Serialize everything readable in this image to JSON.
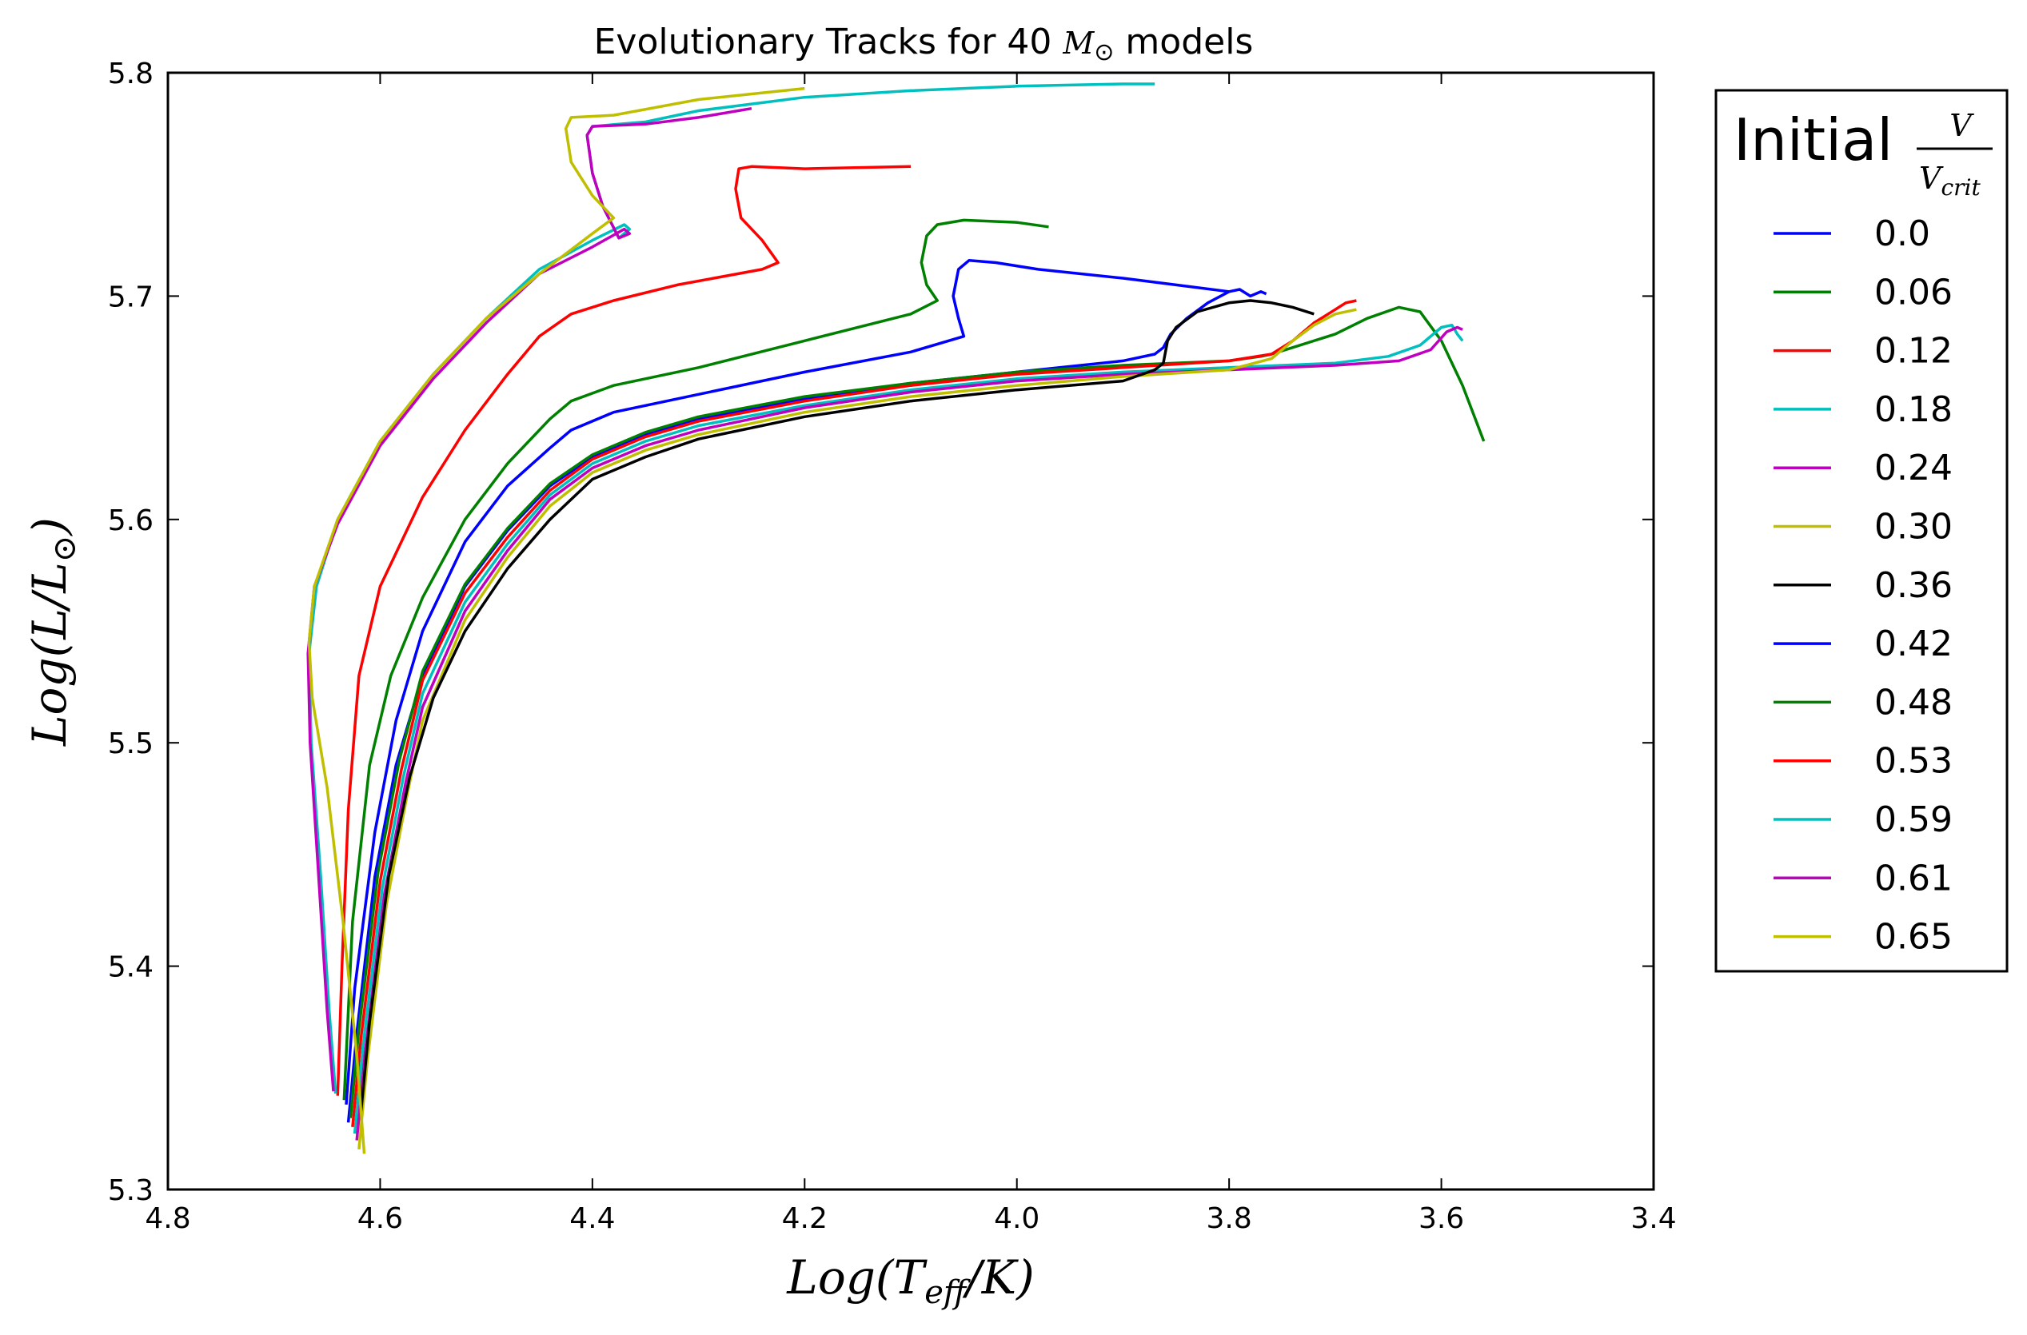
{
  "chart_data": {
    "type": "line",
    "title_prefix": "Evolutionary Tracks for 40 ",
    "title_math": "M",
    "title_math_sub": "⊙",
    "title_suffix": " models",
    "xlabel": "Log(T",
    "xlabel_sub": "eff",
    "xlabel_end": "/K)",
    "ylabel": "Log(L/L",
    "ylabel_sub": "⊙",
    "ylabel_end": ")",
    "xlim": [
      4.8,
      3.4
    ],
    "ylim": [
      5.3,
      5.8
    ],
    "xticks": [
      "4.8",
      "4.6",
      "4.4",
      "4.2",
      "4.0",
      "3.8",
      "3.6",
      "3.4"
    ],
    "yticks": [
      "5.3",
      "5.4",
      "5.5",
      "5.6",
      "5.7",
      "5.8"
    ],
    "x_inverted": true,
    "grid": false,
    "legend_placement": "outside-right",
    "legend_title_word": "Initial",
    "legend_title_num": "V",
    "legend_title_den": "V",
    "legend_title_den_sub": "crit",
    "series": [
      {
        "name": "0.0",
        "color": "#0000ff",
        "x": [
          4.63,
          4.622,
          4.605,
          4.585,
          4.56,
          4.52,
          4.48,
          4.44,
          4.4,
          4.35,
          4.3,
          4.2,
          4.1,
          4.0,
          3.9,
          3.87,
          3.862,
          3.855,
          3.84,
          3.82,
          3.8,
          3.79,
          3.78,
          3.77,
          3.765
        ],
        "y": [
          5.33,
          5.37,
          5.44,
          5.49,
          5.53,
          5.57,
          5.595,
          5.615,
          5.628,
          5.638,
          5.645,
          5.654,
          5.661,
          5.666,
          5.671,
          5.674,
          5.677,
          5.683,
          5.69,
          5.697,
          5.702,
          5.703,
          5.7,
          5.702,
          5.701
        ]
      },
      {
        "name": "0.06",
        "color": "#008000",
        "x": [
          4.628,
          4.62,
          4.602,
          4.582,
          4.56,
          4.52,
          4.48,
          4.44,
          4.4,
          4.35,
          4.3,
          4.2,
          4.1,
          4.0,
          3.9,
          3.8,
          3.77,
          3.76,
          3.74,
          3.7,
          3.67,
          3.64,
          3.62,
          3.6,
          3.58,
          3.56
        ],
        "y": [
          5.332,
          5.372,
          5.442,
          5.492,
          5.532,
          5.571,
          5.596,
          5.616,
          5.629,
          5.639,
          5.646,
          5.655,
          5.661,
          5.666,
          5.669,
          5.671,
          5.673,
          5.674,
          5.677,
          5.683,
          5.69,
          5.695,
          5.693,
          5.68,
          5.66,
          5.635
        ]
      },
      {
        "name": "0.12",
        "color": "#ff0000",
        "x": [
          4.626,
          4.618,
          4.6,
          4.58,
          4.56,
          4.52,
          4.48,
          4.44,
          4.4,
          4.35,
          4.3,
          4.2,
          4.1,
          4.0,
          3.9,
          3.8,
          3.76,
          3.74,
          3.72,
          3.7,
          3.69,
          3.68
        ],
        "y": [
          5.328,
          5.368,
          5.438,
          5.488,
          5.528,
          5.567,
          5.592,
          5.613,
          5.627,
          5.637,
          5.644,
          5.653,
          5.66,
          5.665,
          5.668,
          5.671,
          5.674,
          5.68,
          5.688,
          5.694,
          5.697,
          5.698
        ]
      },
      {
        "name": "0.18",
        "color": "#00bfbf",
        "x": [
          4.624,
          4.616,
          4.598,
          4.578,
          4.56,
          4.52,
          4.48,
          4.44,
          4.4,
          4.35,
          4.3,
          4.2,
          4.1,
          4.0,
          3.9,
          3.8,
          3.7,
          3.65,
          3.62,
          3.6,
          3.59,
          3.585,
          3.58
        ],
        "y": [
          5.325,
          5.365,
          5.435,
          5.485,
          5.522,
          5.563,
          5.589,
          5.611,
          5.625,
          5.635,
          5.642,
          5.651,
          5.658,
          5.663,
          5.666,
          5.668,
          5.67,
          5.673,
          5.678,
          5.686,
          5.687,
          5.683,
          5.68
        ]
      },
      {
        "name": "0.24",
        "color": "#bf00bf",
        "x": [
          4.622,
          4.614,
          4.596,
          4.576,
          4.56,
          4.52,
          4.48,
          4.44,
          4.4,
          4.35,
          4.3,
          4.2,
          4.1,
          4.0,
          3.9,
          3.8,
          3.7,
          3.64,
          3.61,
          3.595,
          3.585,
          3.58
        ],
        "y": [
          5.322,
          5.362,
          5.432,
          5.482,
          5.516,
          5.559,
          5.586,
          5.609,
          5.623,
          5.633,
          5.64,
          5.65,
          5.657,
          5.662,
          5.665,
          5.667,
          5.669,
          5.671,
          5.676,
          5.684,
          5.686,
          5.685
        ]
      },
      {
        "name": "0.30",
        "color": "#bfbf00",
        "x": [
          4.62,
          4.612,
          4.594,
          4.574,
          4.56,
          4.52,
          4.48,
          4.44,
          4.4,
          4.35,
          4.3,
          4.2,
          4.1,
          4.0,
          3.9,
          3.8,
          3.76,
          3.74,
          3.72,
          3.7,
          3.68
        ],
        "y": [
          5.318,
          5.358,
          5.428,
          5.478,
          5.51,
          5.555,
          5.583,
          5.606,
          5.621,
          5.631,
          5.638,
          5.648,
          5.655,
          5.66,
          5.664,
          5.667,
          5.672,
          5.68,
          5.687,
          5.692,
          5.694
        ]
      },
      {
        "name": "0.36",
        "color": "#000000",
        "x": [
          4.618,
          4.61,
          4.592,
          4.572,
          4.55,
          4.52,
          4.48,
          4.44,
          4.4,
          4.35,
          4.3,
          4.2,
          4.1,
          4.0,
          3.9,
          3.87,
          3.862,
          3.858,
          3.85,
          3.83,
          3.8,
          3.78,
          3.76,
          3.74,
          3.72
        ],
        "y": [
          5.335,
          5.375,
          5.44,
          5.485,
          5.52,
          5.55,
          5.578,
          5.6,
          5.618,
          5.628,
          5.636,
          5.646,
          5.653,
          5.658,
          5.662,
          5.667,
          5.67,
          5.68,
          5.686,
          5.693,
          5.697,
          5.698,
          5.697,
          5.695,
          5.692
        ]
      },
      {
        "name": "0.42",
        "color": "#0000ff",
        "x": [
          4.632,
          4.624,
          4.605,
          4.585,
          4.56,
          4.52,
          4.48,
          4.44,
          4.42,
          4.38,
          4.3,
          4.2,
          4.1,
          4.05,
          4.055,
          4.06,
          4.055,
          4.045,
          4.02,
          3.98,
          3.9,
          3.85,
          3.8
        ],
        "y": [
          5.338,
          5.39,
          5.46,
          5.51,
          5.55,
          5.59,
          5.615,
          5.632,
          5.64,
          5.648,
          5.656,
          5.666,
          5.675,
          5.682,
          5.69,
          5.7,
          5.712,
          5.716,
          5.715,
          5.712,
          5.708,
          5.705,
          5.702
        ]
      },
      {
        "name": "0.48",
        "color": "#008000",
        "x": [
          4.634,
          4.626,
          4.61,
          4.59,
          4.56,
          4.52,
          4.48,
          4.44,
          4.42,
          4.38,
          4.3,
          4.2,
          4.1,
          4.075,
          4.085,
          4.09,
          4.085,
          4.075,
          4.05,
          4.0,
          3.97
        ],
        "y": [
          5.34,
          5.42,
          5.49,
          5.53,
          5.565,
          5.6,
          5.625,
          5.645,
          5.653,
          5.66,
          5.668,
          5.68,
          5.692,
          5.698,
          5.705,
          5.715,
          5.727,
          5.732,
          5.734,
          5.733,
          5.731
        ]
      },
      {
        "name": "0.53",
        "color": "#ff0000",
        "x": [
          4.64,
          4.636,
          4.63,
          4.62,
          4.6,
          4.56,
          4.52,
          4.48,
          4.45,
          4.42,
          4.38,
          4.32,
          4.24,
          4.225,
          4.24,
          4.26,
          4.265,
          4.262,
          4.25,
          4.2,
          4.1
        ],
        "y": [
          5.342,
          5.4,
          5.47,
          5.53,
          5.57,
          5.61,
          5.64,
          5.665,
          5.682,
          5.692,
          5.698,
          5.705,
          5.712,
          5.715,
          5.725,
          5.735,
          5.748,
          5.757,
          5.758,
          5.757,
          5.758
        ]
      },
      {
        "name": "0.59",
        "color": "#00bfbf",
        "x": [
          4.642,
          4.648,
          4.656,
          4.665,
          4.667,
          4.66,
          4.64,
          4.6,
          4.55,
          4.5,
          4.45,
          4.4,
          4.37,
          4.365,
          4.375,
          4.39,
          4.4,
          4.405,
          4.4,
          4.35,
          4.3,
          4.2,
          4.1,
          4.0,
          3.9,
          3.87
        ],
        "y": [
          5.343,
          5.38,
          5.44,
          5.5,
          5.54,
          5.57,
          5.6,
          5.635,
          5.665,
          5.69,
          5.712,
          5.725,
          5.732,
          5.73,
          5.726,
          5.74,
          5.755,
          5.772,
          5.776,
          5.778,
          5.783,
          5.789,
          5.792,
          5.794,
          5.795,
          5.795
        ]
      },
      {
        "name": "0.61",
        "color": "#bf00bf",
        "x": [
          4.644,
          4.65,
          4.658,
          4.666,
          4.668,
          4.662,
          4.64,
          4.6,
          4.55,
          4.5,
          4.45,
          4.4,
          4.37,
          4.365,
          4.375,
          4.39,
          4.4,
          4.405,
          4.4,
          4.35,
          4.3,
          4.25
        ],
        "y": [
          5.344,
          5.38,
          5.44,
          5.5,
          5.54,
          5.57,
          5.598,
          5.633,
          5.663,
          5.688,
          5.71,
          5.722,
          5.73,
          5.728,
          5.726,
          5.74,
          5.755,
          5.772,
          5.776,
          5.777,
          5.78,
          5.784
        ]
      },
      {
        "name": "0.65",
        "color": "#bfbf00",
        "x": [
          4.615,
          4.622,
          4.635,
          4.65,
          4.664,
          4.667,
          4.662,
          4.64,
          4.6,
          4.55,
          4.5,
          4.45,
          4.4,
          4.38,
          4.4,
          4.42,
          4.425,
          4.42,
          4.38,
          4.3,
          4.2
        ],
        "y": [
          5.316,
          5.36,
          5.42,
          5.48,
          5.52,
          5.545,
          5.57,
          5.6,
          5.635,
          5.665,
          5.69,
          5.71,
          5.728,
          5.735,
          5.745,
          5.76,
          5.775,
          5.78,
          5.781,
          5.788,
          5.793
        ]
      }
    ]
  }
}
